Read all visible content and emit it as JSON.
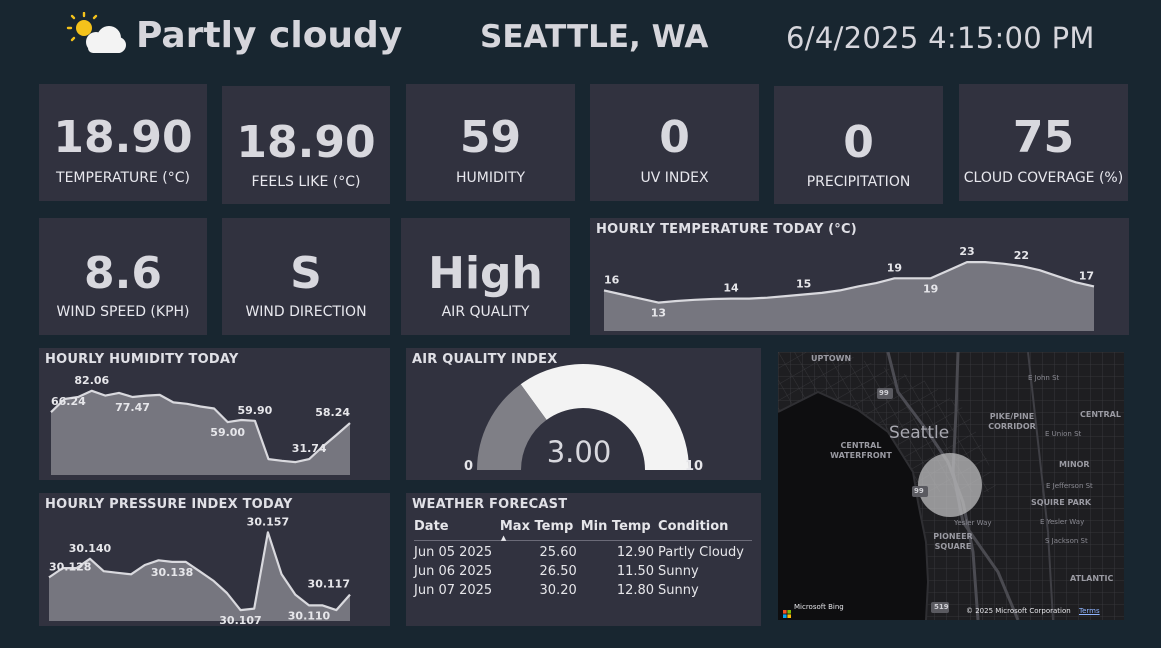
{
  "header": {
    "condition": "Partly cloudy",
    "condition_icon": "partly-cloudy-icon",
    "location": "SEATTLE, WA",
    "datetime": "6/4/2025 4:15:00 PM"
  },
  "kpis": {
    "temperature": {
      "value": "18.90",
      "label": "TEMPERATURE (°C)"
    },
    "feels_like": {
      "value": "18.90",
      "label": "FEELS LIKE (°C)"
    },
    "humidity": {
      "value": "59",
      "label": "HUMIDITY"
    },
    "uv_index": {
      "value": "0",
      "label": "UV INDEX"
    },
    "precipitation": {
      "value": "0",
      "label": "PRECIPITATION"
    },
    "cloud_coverage": {
      "value": "75",
      "label": "CLOUD COVERAGE (%)"
    },
    "wind_speed": {
      "value": "8.6",
      "label": "WIND SPEED (KPH)"
    },
    "wind_direction": {
      "value": "S",
      "label": "WIND DIRECTION"
    },
    "air_quality": {
      "value": "High",
      "label": "AIR QUALITY"
    }
  },
  "gauge": {
    "title": "AIR QUALITY INDEX",
    "value_label": "3.00",
    "min_label": "0",
    "max_label": "10"
  },
  "forecast": {
    "title": "WEATHER FORECAST",
    "columns": [
      "Date",
      "Max Temp",
      "Min Temp",
      "Condition"
    ],
    "rows": [
      [
        "Jun 05 2025",
        "25.60",
        "12.90",
        "Partly Cloudy"
      ],
      [
        "Jun 06 2025",
        "26.50",
        "11.50",
        "Sunny"
      ],
      [
        "Jun 07 2025",
        "30.20",
        "12.80",
        "Sunny"
      ]
    ]
  },
  "map": {
    "labels": [
      "UPTOWN",
      "Seattle",
      "CENTRAL WATERFRONT",
      "PIKE/PINE CORRIDOR",
      "CENTRAL",
      "MINOR",
      "SQUIRE PARK",
      "PIONEER SQUARE",
      "ATLANTIC",
      "E Union St",
      "E Jefferson St",
      "E Yesler Way",
      "S Jackson St",
      "Yesler Way",
      "E John St"
    ],
    "route_labels": [
      "99",
      "99",
      "519"
    ],
    "brand": "Microsoft Bing",
    "copyright": "© 2025 Microsoft Corporation",
    "terms": "Terms"
  },
  "chart_data": [
    {
      "type": "area",
      "title": "HOURLY TEMPERATURE TODAY (°C)",
      "values": [
        16,
        15,
        14,
        13,
        13.4,
        13.7,
        13.9,
        14,
        14,
        14.2,
        14.6,
        15,
        15.4,
        16,
        17,
        17.8,
        19,
        19,
        19,
        21,
        23,
        23,
        22.6,
        22,
        21,
        19.5,
        18,
        17
      ],
      "data_labels": [
        {
          "index": 0,
          "text": "16"
        },
        {
          "index": 3,
          "text": "13"
        },
        {
          "index": 7,
          "text": "14"
        },
        {
          "index": 11,
          "text": "15"
        },
        {
          "index": 16,
          "text": "19"
        },
        {
          "index": 18,
          "text": "19"
        },
        {
          "index": 20,
          "text": "23"
        },
        {
          "index": 23,
          "text": "22"
        },
        {
          "index": 27,
          "text": "17"
        }
      ],
      "ylim": [
        6,
        24
      ],
      "series_color": "#d9d9de"
    },
    {
      "type": "area",
      "title": "HOURLY HUMIDITY TODAY",
      "values": [
        66.24,
        76,
        77.5,
        82.06,
        78.5,
        80.5,
        77.47,
        78.5,
        79,
        73.5,
        72.5,
        70.5,
        69,
        59,
        60.5,
        59.9,
        31.74,
        30.5,
        29.5,
        31.74,
        41,
        49.5,
        58.24
      ],
      "data_labels": [
        {
          "index": 0,
          "text": "66.24"
        },
        {
          "index": 3,
          "text": "82.06"
        },
        {
          "index": 6,
          "text": "77.47"
        },
        {
          "index": 13,
          "text": "59.00"
        },
        {
          "index": 15,
          "text": "59.90"
        },
        {
          "index": 19,
          "text": "31.74"
        },
        {
          "index": 22,
          "text": "58.24"
        }
      ],
      "ylim": [
        20,
        90
      ],
      "series_color": "#d9d9de"
    },
    {
      "type": "area",
      "title": "HOURLY PRESSURE INDEX TODAY",
      "values": [
        30.128,
        30.134,
        30.134,
        30.14,
        30.132,
        30.131,
        30.13,
        30.136,
        30.139,
        30.138,
        30.138,
        30.132,
        30.126,
        30.118,
        30.107,
        30.108,
        30.157,
        30.13,
        30.117,
        30.11,
        30.11,
        30.107,
        30.117
      ],
      "data_labels": [
        {
          "index": 0,
          "text": "30.128"
        },
        {
          "index": 3,
          "text": "30.140"
        },
        {
          "index": 9,
          "text": "30.138"
        },
        {
          "index": 14,
          "text": "30.107"
        },
        {
          "index": 16,
          "text": "30.157"
        },
        {
          "index": 19,
          "text": "30.110"
        },
        {
          "index": 22,
          "text": "30.117"
        }
      ],
      "ylim": [
        30.1,
        30.163
      ],
      "series_color": "#d9d9de"
    },
    {
      "type": "gauge",
      "title": "AIR QUALITY INDEX",
      "value": 3,
      "min": 0,
      "max": 10,
      "value_color": "#7f7f86",
      "remaining_color": "#f3f3f3"
    }
  ]
}
